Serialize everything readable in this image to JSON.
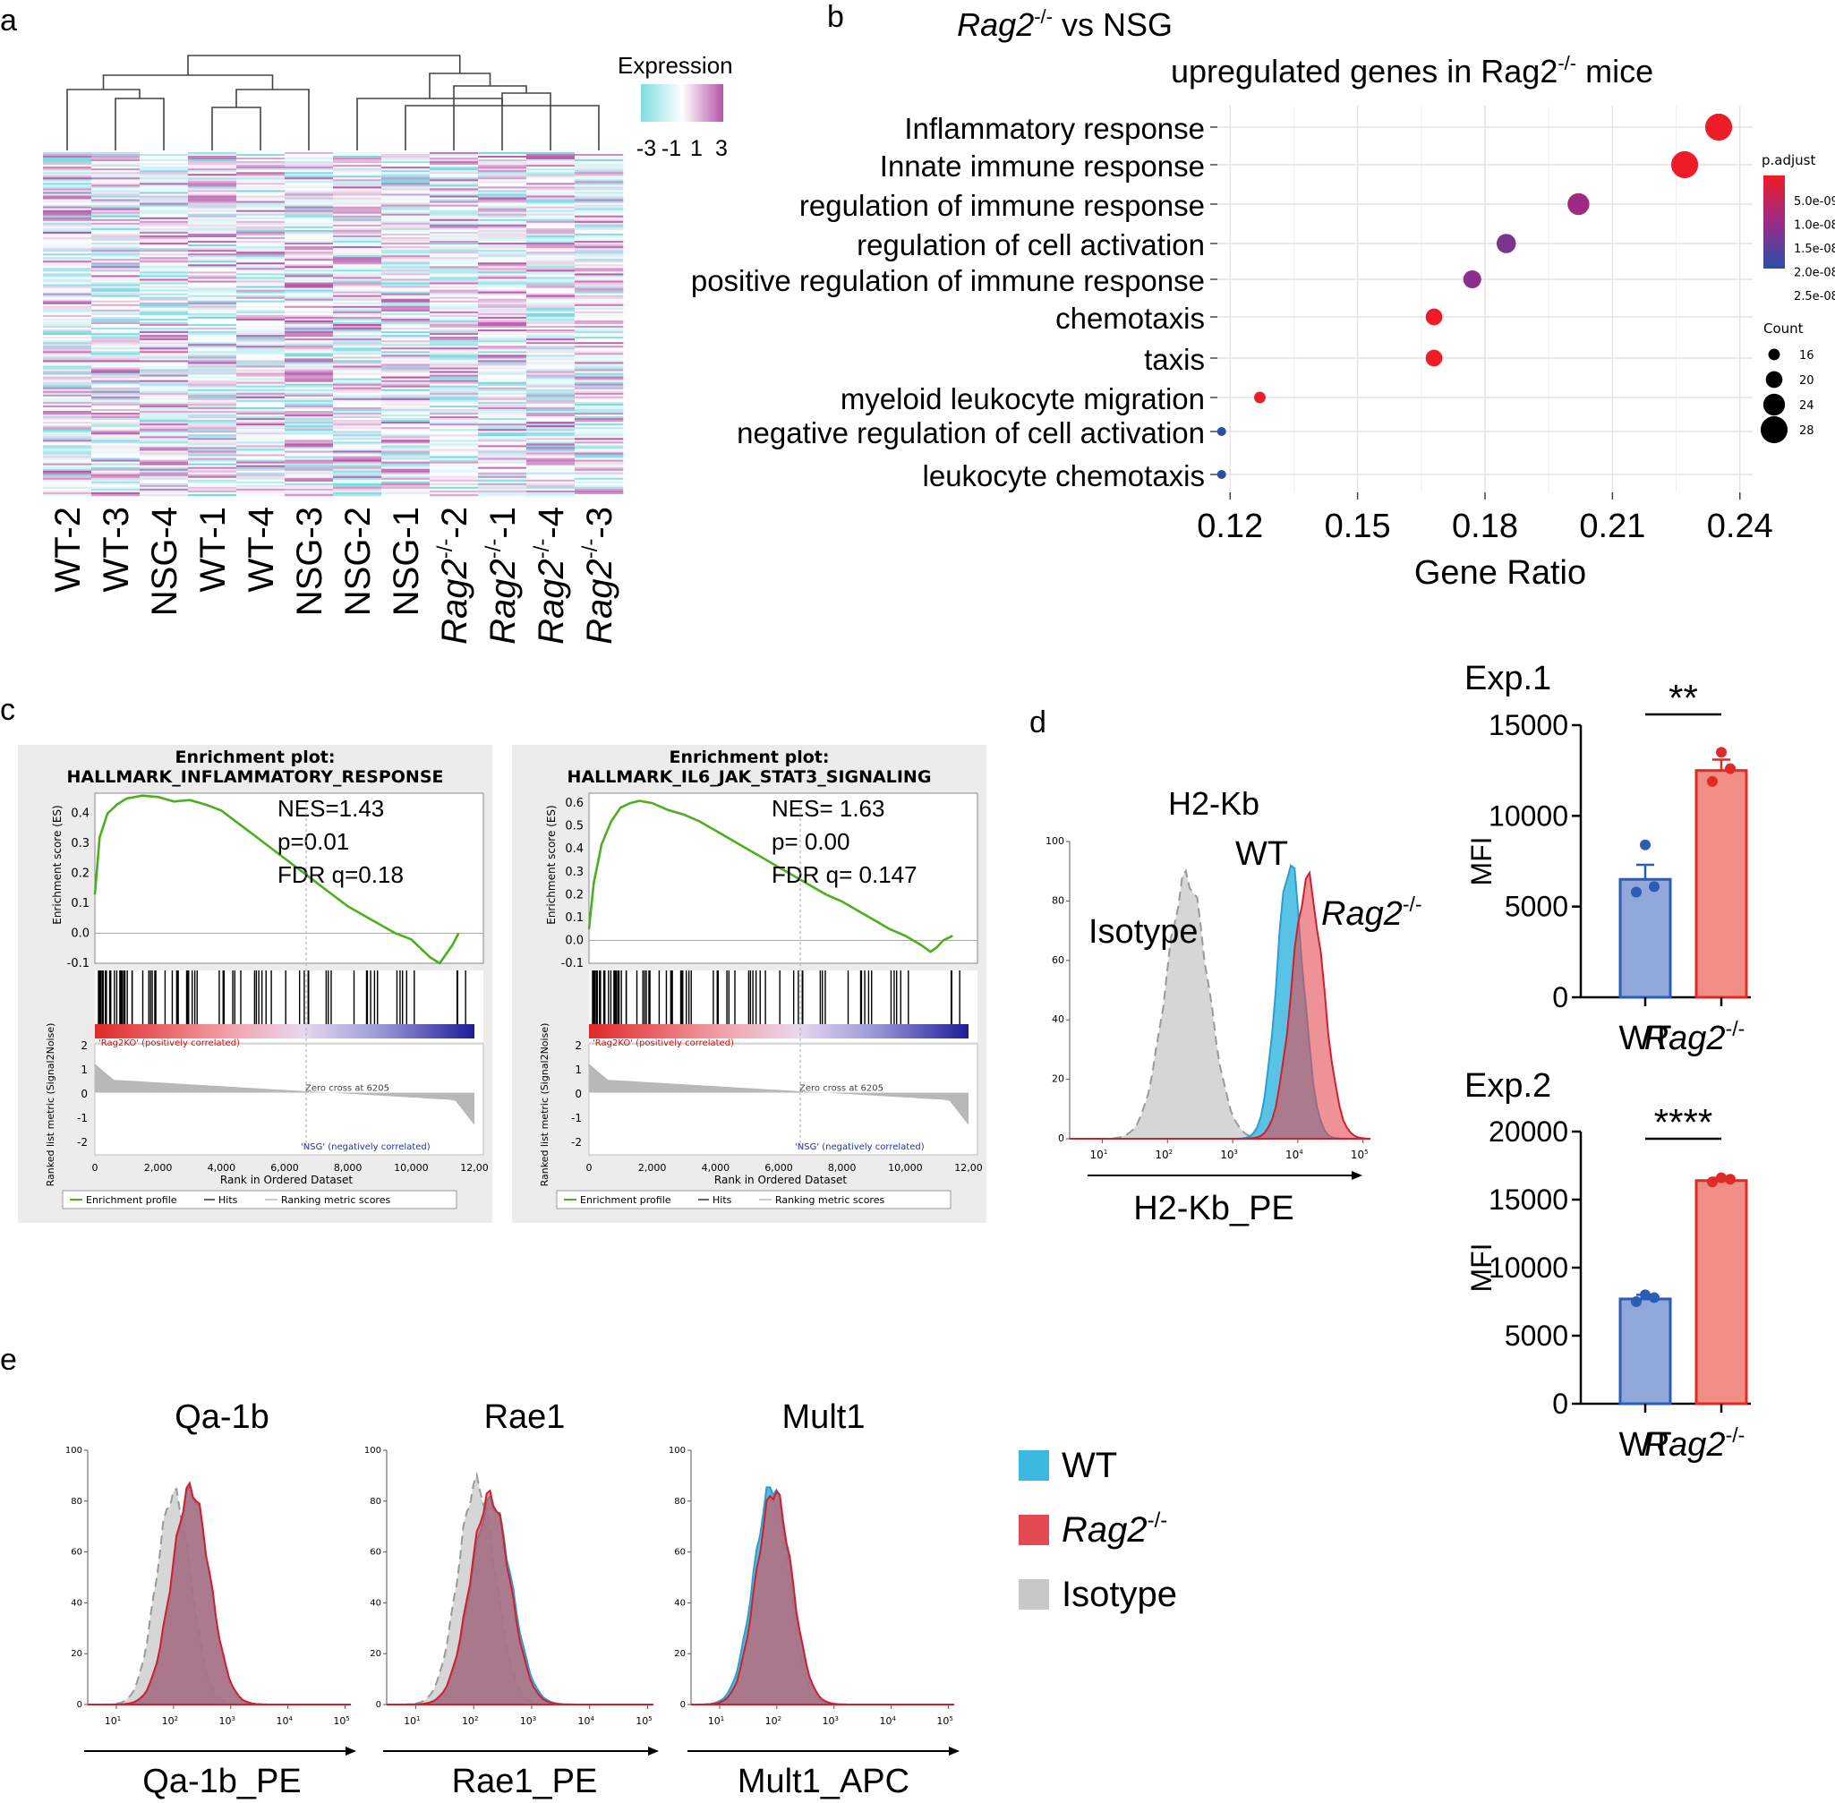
{
  "panel_labels": {
    "a": "a",
    "b": "b",
    "c": "c",
    "d": "d",
    "e": "e"
  },
  "colors": {
    "wt_fill": "#3bb8e0",
    "rag_fill": "#e44a52",
    "iso_fill": "#c8c8c8",
    "bar_wt": "#8fa8d8",
    "bar_wt_edge": "#2a5cb8",
    "bar_rag": "#f08e86",
    "bar_rag_edge": "#e02a24",
    "gsea_line": "#4caf1e"
  },
  "chart_data": [
    {
      "id": "a",
      "type": "heatmap",
      "legend_title": "Expression",
      "legend_ticks": [
        "-3",
        "-1",
        "1",
        "3"
      ],
      "samples": [
        "WT-2",
        "WT-3",
        "NSG-4",
        "WT-1",
        "WT-4",
        "NSG-3",
        "NSG-2",
        "NSG-1",
        "Rag2-/--2",
        "Rag2-/--1",
        "Rag2-/--4",
        "Rag2-/--3"
      ],
      "sample_labels": [
        {
          "main": "WT-2",
          "sup": "",
          "tail": "",
          "italic": false
        },
        {
          "main": "WT-3",
          "sup": "",
          "tail": "",
          "italic": false
        },
        {
          "main": "NSG-4",
          "sup": "",
          "tail": "",
          "italic": false
        },
        {
          "main": "WT-1",
          "sup": "",
          "tail": "",
          "italic": false
        },
        {
          "main": "WT-4",
          "sup": "",
          "tail": "",
          "italic": false
        },
        {
          "main": "NSG-3",
          "sup": "",
          "tail": "",
          "italic": false
        },
        {
          "main": "NSG-2",
          "sup": "",
          "tail": "",
          "italic": false
        },
        {
          "main": "NSG-1",
          "sup": "",
          "tail": "",
          "italic": false
        },
        {
          "main": "Rag2",
          "sup": "-/-",
          "tail": "-2",
          "italic": true
        },
        {
          "main": "Rag2",
          "sup": "-/-",
          "tail": "-1",
          "italic": true
        },
        {
          "main": "Rag2",
          "sup": "-/-",
          "tail": "-4",
          "italic": true
        },
        {
          "main": "Rag2",
          "sup": "-/-",
          "tail": "-3",
          "italic": true
        }
      ],
      "value_range": [
        -3,
        3
      ]
    },
    {
      "id": "b",
      "type": "scatter",
      "title_parts": {
        "italic": "Rag2",
        "sup": "-/-",
        "rest": " vs NSG"
      },
      "subtitle_parts": {
        "pre": "upregulated genes in Rag2",
        "sup": "-/-",
        "post": " mice"
      },
      "xlabel": "Gene Ratio",
      "xlim": [
        0.117,
        0.243
      ],
      "xticks": [
        0.12,
        0.15,
        0.18,
        0.21,
        0.24
      ],
      "xtick_labels": [
        "0.12",
        "0.15",
        "0.18",
        "0.21",
        "0.24"
      ],
      "terms": [
        "Inflammatory response",
        "Innate immune response",
        "regulation of immune response",
        "regulation of cell activation",
        "positive regulation of immune response",
        "chemotaxis",
        "taxis",
        "myeloid leukocyte migration",
        "negative regulation of cell activation",
        "leukocyte chemotaxis"
      ],
      "gene_ratio": [
        0.235,
        0.227,
        0.202,
        0.185,
        0.177,
        0.168,
        0.168,
        0.127,
        0.118,
        0.118
      ],
      "count": [
        28,
        28,
        24,
        22,
        21,
        20,
        20,
        16,
        14,
        14
      ],
      "p_adjust": [
        1e-10,
        1e-10,
        1.2e-08,
        1.6e-08,
        1.4e-08,
        2e-10,
        2e-10,
        1e-10,
        2.5e-08,
        2.5e-08
      ],
      "padj_title": "p.adjust",
      "padj_ticks": [
        "5.0e-09",
        "1.0e-08",
        "1.5e-08",
        "2.0e-08",
        "2.5e-08"
      ],
      "count_title": "Count",
      "count_ticks": [
        "16",
        "20",
        "24",
        "28"
      ]
    },
    {
      "id": "c1",
      "type": "line",
      "title": "Enrichment plot:",
      "subtitle": "HALLMARK_INFLAMMATORY_RESPONSE",
      "stats": [
        "NES=1.43",
        "p=0.01",
        "FDR q=0.18"
      ],
      "ylabel": "Enrichment score (ES)",
      "yticks": [
        "0.4",
        "0.3",
        "0.2",
        "0.1",
        "0.0",
        "-0.1"
      ],
      "ylim": [
        -0.1,
        0.45
      ],
      "xlim": [
        0,
        12000
      ],
      "es_x": [
        0,
        150,
        400,
        700,
        1000,
        1500,
        2000,
        2500,
        3000,
        3500,
        4000,
        4500,
        5000,
        5500,
        6000,
        6500,
        7000,
        7500,
        8000,
        8500,
        9000,
        9500,
        10000,
        10300,
        10600,
        10900,
        11100,
        11300,
        11500
      ],
      "es_y": [
        0.13,
        0.32,
        0.4,
        0.43,
        0.45,
        0.46,
        0.455,
        0.44,
        0.445,
        0.43,
        0.41,
        0.37,
        0.33,
        0.29,
        0.25,
        0.21,
        0.17,
        0.13,
        0.09,
        0.06,
        0.03,
        0.0,
        -0.02,
        -0.05,
        -0.08,
        -0.1,
        -0.07,
        -0.04,
        0.0
      ],
      "hits_density": "dense_left",
      "metric_ylabel": "Ranked list metric (Signal2Noise)",
      "metric_yticks": [
        "2",
        "1",
        "0",
        "-1",
        "-2"
      ],
      "pos_label": "'Rag2KO' (positively correlated)",
      "neg_label": "'NSG' (negatively correlated)",
      "zero_cross": "Zero cross at 6205",
      "xlabel": "Rank in Ordered Dataset",
      "xticks": [
        "0",
        "2,000",
        "4,000",
        "6,000",
        "8,000",
        "10,000",
        "12,00"
      ],
      "legend": [
        "Enrichment profile",
        "Hits",
        "Ranking metric scores"
      ]
    },
    {
      "id": "c2",
      "type": "line",
      "title": "Enrichment plot:",
      "subtitle": "HALLMARK_IL6_JAK_STAT3_SIGNALING",
      "stats": [
        "NES= 1.63",
        "p= 0.00",
        "FDR q= 0.147"
      ],
      "ylabel": "Enrichment score (ES)",
      "yticks": [
        "0.6",
        "0.5",
        "0.4",
        "0.3",
        "0.2",
        "0.1",
        "0.0",
        "-0.1"
      ],
      "ylim": [
        -0.1,
        0.62
      ],
      "xlim": [
        0,
        12000
      ],
      "es_x": [
        0,
        150,
        400,
        700,
        1000,
        1300,
        1600,
        2000,
        2500,
        3000,
        3500,
        4000,
        4500,
        5000,
        5500,
        6000,
        6500,
        7000,
        7500,
        8000,
        8500,
        9000,
        9500,
        10000,
        10500,
        10800,
        11000,
        11200,
        11500
      ],
      "es_y": [
        0.05,
        0.25,
        0.42,
        0.52,
        0.58,
        0.6,
        0.61,
        0.6,
        0.57,
        0.55,
        0.52,
        0.48,
        0.44,
        0.4,
        0.36,
        0.32,
        0.28,
        0.24,
        0.2,
        0.17,
        0.13,
        0.09,
        0.05,
        0.02,
        -0.02,
        -0.05,
        -0.03,
        0.0,
        0.02
      ],
      "hits_density": "dense_left",
      "metric_ylabel": "Ranked list metric (Signal2Noise)",
      "metric_yticks": [
        "2",
        "1",
        "0",
        "-1",
        "-2"
      ],
      "pos_label": "'Rag2KO' (positively correlated)",
      "neg_label": "'NSG' (negatively correlated)",
      "zero_cross": "Zero cross at 6205",
      "xlabel": "Rank in Ordered Dataset",
      "xticks": [
        "0",
        "2,000",
        "4,000",
        "6,000",
        "8,000",
        "10,000",
        "12,00"
      ],
      "legend": [
        "Enrichment profile",
        "Hits",
        "Ranking metric scores"
      ]
    },
    {
      "id": "d_hist",
      "type": "area",
      "title": "H2-Kb",
      "xlabel": "H2-Kb_PE",
      "yticks": [
        "0",
        "20",
        "40",
        "60",
        "80",
        "100"
      ],
      "ylim": [
        0,
        100
      ],
      "xlim_log10": [
        0.5,
        5.1
      ],
      "xtick_bases": [
        "10",
        "10",
        "10",
        "10",
        "10"
      ],
      "xtick_exps": [
        "1",
        "2",
        "3",
        "4",
        "5"
      ],
      "labels": {
        "isotype": "Isotype",
        "wt": "WT",
        "rag_main": "Rag2",
        "rag_sup": "-/-"
      },
      "series": [
        {
          "name": "Isotype",
          "peak_log": 2.3,
          "sd_log": 0.32,
          "peak": 88,
          "style": "iso"
        },
        {
          "name": "WT",
          "peak_log": 3.88,
          "sd_log": 0.2,
          "peak": 93,
          "style": "wt"
        },
        {
          "name": "Rag2-/-",
          "peak_log": 4.15,
          "sd_log": 0.24,
          "peak": 87,
          "style": "rag"
        }
      ]
    },
    {
      "id": "d_exp1",
      "type": "bar",
      "title": "Exp.1",
      "ylabel": "MFI",
      "ylim": [
        0,
        15000
      ],
      "yticks": [
        0,
        5000,
        10000,
        15000
      ],
      "ytick_labels": [
        "0",
        "5000",
        "10000",
        "15000"
      ],
      "categories": [
        "WT",
        "Rag2-/-"
      ],
      "category_labels": [
        {
          "main": "WT",
          "sup": "",
          "italic": false
        },
        {
          "main": "Rag2",
          "sup": "-/-",
          "italic": true
        }
      ],
      "values": [
        6500,
        12500
      ],
      "errors": [
        800,
        600
      ],
      "points": [
        [
          5800,
          6100,
          8400
        ],
        [
          11900,
          12600,
          13500
        ]
      ],
      "significance": "**"
    },
    {
      "id": "d_exp2",
      "type": "bar",
      "title": "Exp.2",
      "ylabel": "MFI",
      "ylim": [
        0,
        20000
      ],
      "yticks": [
        0,
        5000,
        10000,
        15000,
        20000
      ],
      "ytick_labels": [
        "0",
        "5000",
        "10000",
        "15000",
        "20000"
      ],
      "categories": [
        "WT",
        "Rag2-/-"
      ],
      "category_labels": [
        {
          "main": "WT",
          "sup": "",
          "italic": false
        },
        {
          "main": "Rag2",
          "sup": "-/-",
          "italic": true
        }
      ],
      "values": [
        7700,
        16400
      ],
      "errors": [
        300,
        200
      ],
      "points": [
        [
          7500,
          7800,
          8000
        ],
        [
          16300,
          16500,
          16600
        ]
      ],
      "significance": "****"
    },
    {
      "id": "e_qa1b",
      "type": "area",
      "title": "Qa-1b",
      "xlabel": "Qa-1b_PE",
      "yticks": [
        "0",
        "20",
        "40",
        "60",
        "80",
        "100"
      ],
      "xtick_bases": [
        "10",
        "10",
        "10",
        "10",
        "10"
      ],
      "xtick_exps": [
        "1",
        "2",
        "3",
        "4",
        "5"
      ],
      "series": [
        {
          "name": "Isotype",
          "peak_log": 2.0,
          "sd_log": 0.3,
          "peak": 83,
          "style": "iso"
        },
        {
          "name": "WT",
          "peak_log": 2.3,
          "sd_log": 0.33,
          "peak": 84,
          "style": "wt"
        },
        {
          "name": "Rag2-/-",
          "peak_log": 2.3,
          "sd_log": 0.33,
          "peak": 85,
          "style": "rag"
        }
      ]
    },
    {
      "id": "e_rae1",
      "type": "area",
      "title": "Rae1",
      "xlabel": "Rae1_PE",
      "yticks": [
        "0",
        "20",
        "40",
        "60",
        "80",
        "100"
      ],
      "xtick_bases": [
        "10",
        "10",
        "10",
        "10",
        "10"
      ],
      "xtick_exps": [
        "1",
        "2",
        "3",
        "4",
        "5"
      ],
      "series": [
        {
          "name": "Isotype",
          "peak_log": 2.05,
          "sd_log": 0.32,
          "peak": 87,
          "style": "iso"
        },
        {
          "name": "WT",
          "peak_log": 2.3,
          "sd_log": 0.35,
          "peak": 80,
          "style": "wt"
        },
        {
          "name": "Rag2-/-",
          "peak_log": 2.28,
          "sd_log": 0.34,
          "peak": 82,
          "style": "rag"
        }
      ]
    },
    {
      "id": "e_mult1",
      "type": "area",
      "title": "Mult1",
      "xlabel": "Mult1_APC",
      "yticks": [
        "0",
        "20",
        "40",
        "60",
        "80",
        "100"
      ],
      "xtick_bases": [
        "10",
        "10",
        "10",
        "10",
        "10"
      ],
      "xtick_exps": [
        "1",
        "2",
        "3",
        "4",
        "5"
      ],
      "series": [
        {
          "name": "Isotype",
          "peak_log": 1.9,
          "sd_log": 0.3,
          "peak": 85,
          "style": "iso"
        },
        {
          "name": "WT",
          "peak_log": 1.92,
          "sd_log": 0.32,
          "peak": 86,
          "style": "wt"
        },
        {
          "name": "Rag2-/-",
          "peak_log": 1.95,
          "sd_log": 0.31,
          "peak": 84,
          "style": "rag"
        }
      ]
    }
  ],
  "legend_e": {
    "items": [
      {
        "label": "WT",
        "sup": "",
        "italic": false,
        "style": "wt"
      },
      {
        "label": "Rag2",
        "sup": "-/-",
        "italic": true,
        "style": "rag"
      },
      {
        "label": "Isotype",
        "sup": "",
        "italic": false,
        "style": "iso"
      }
    ]
  }
}
